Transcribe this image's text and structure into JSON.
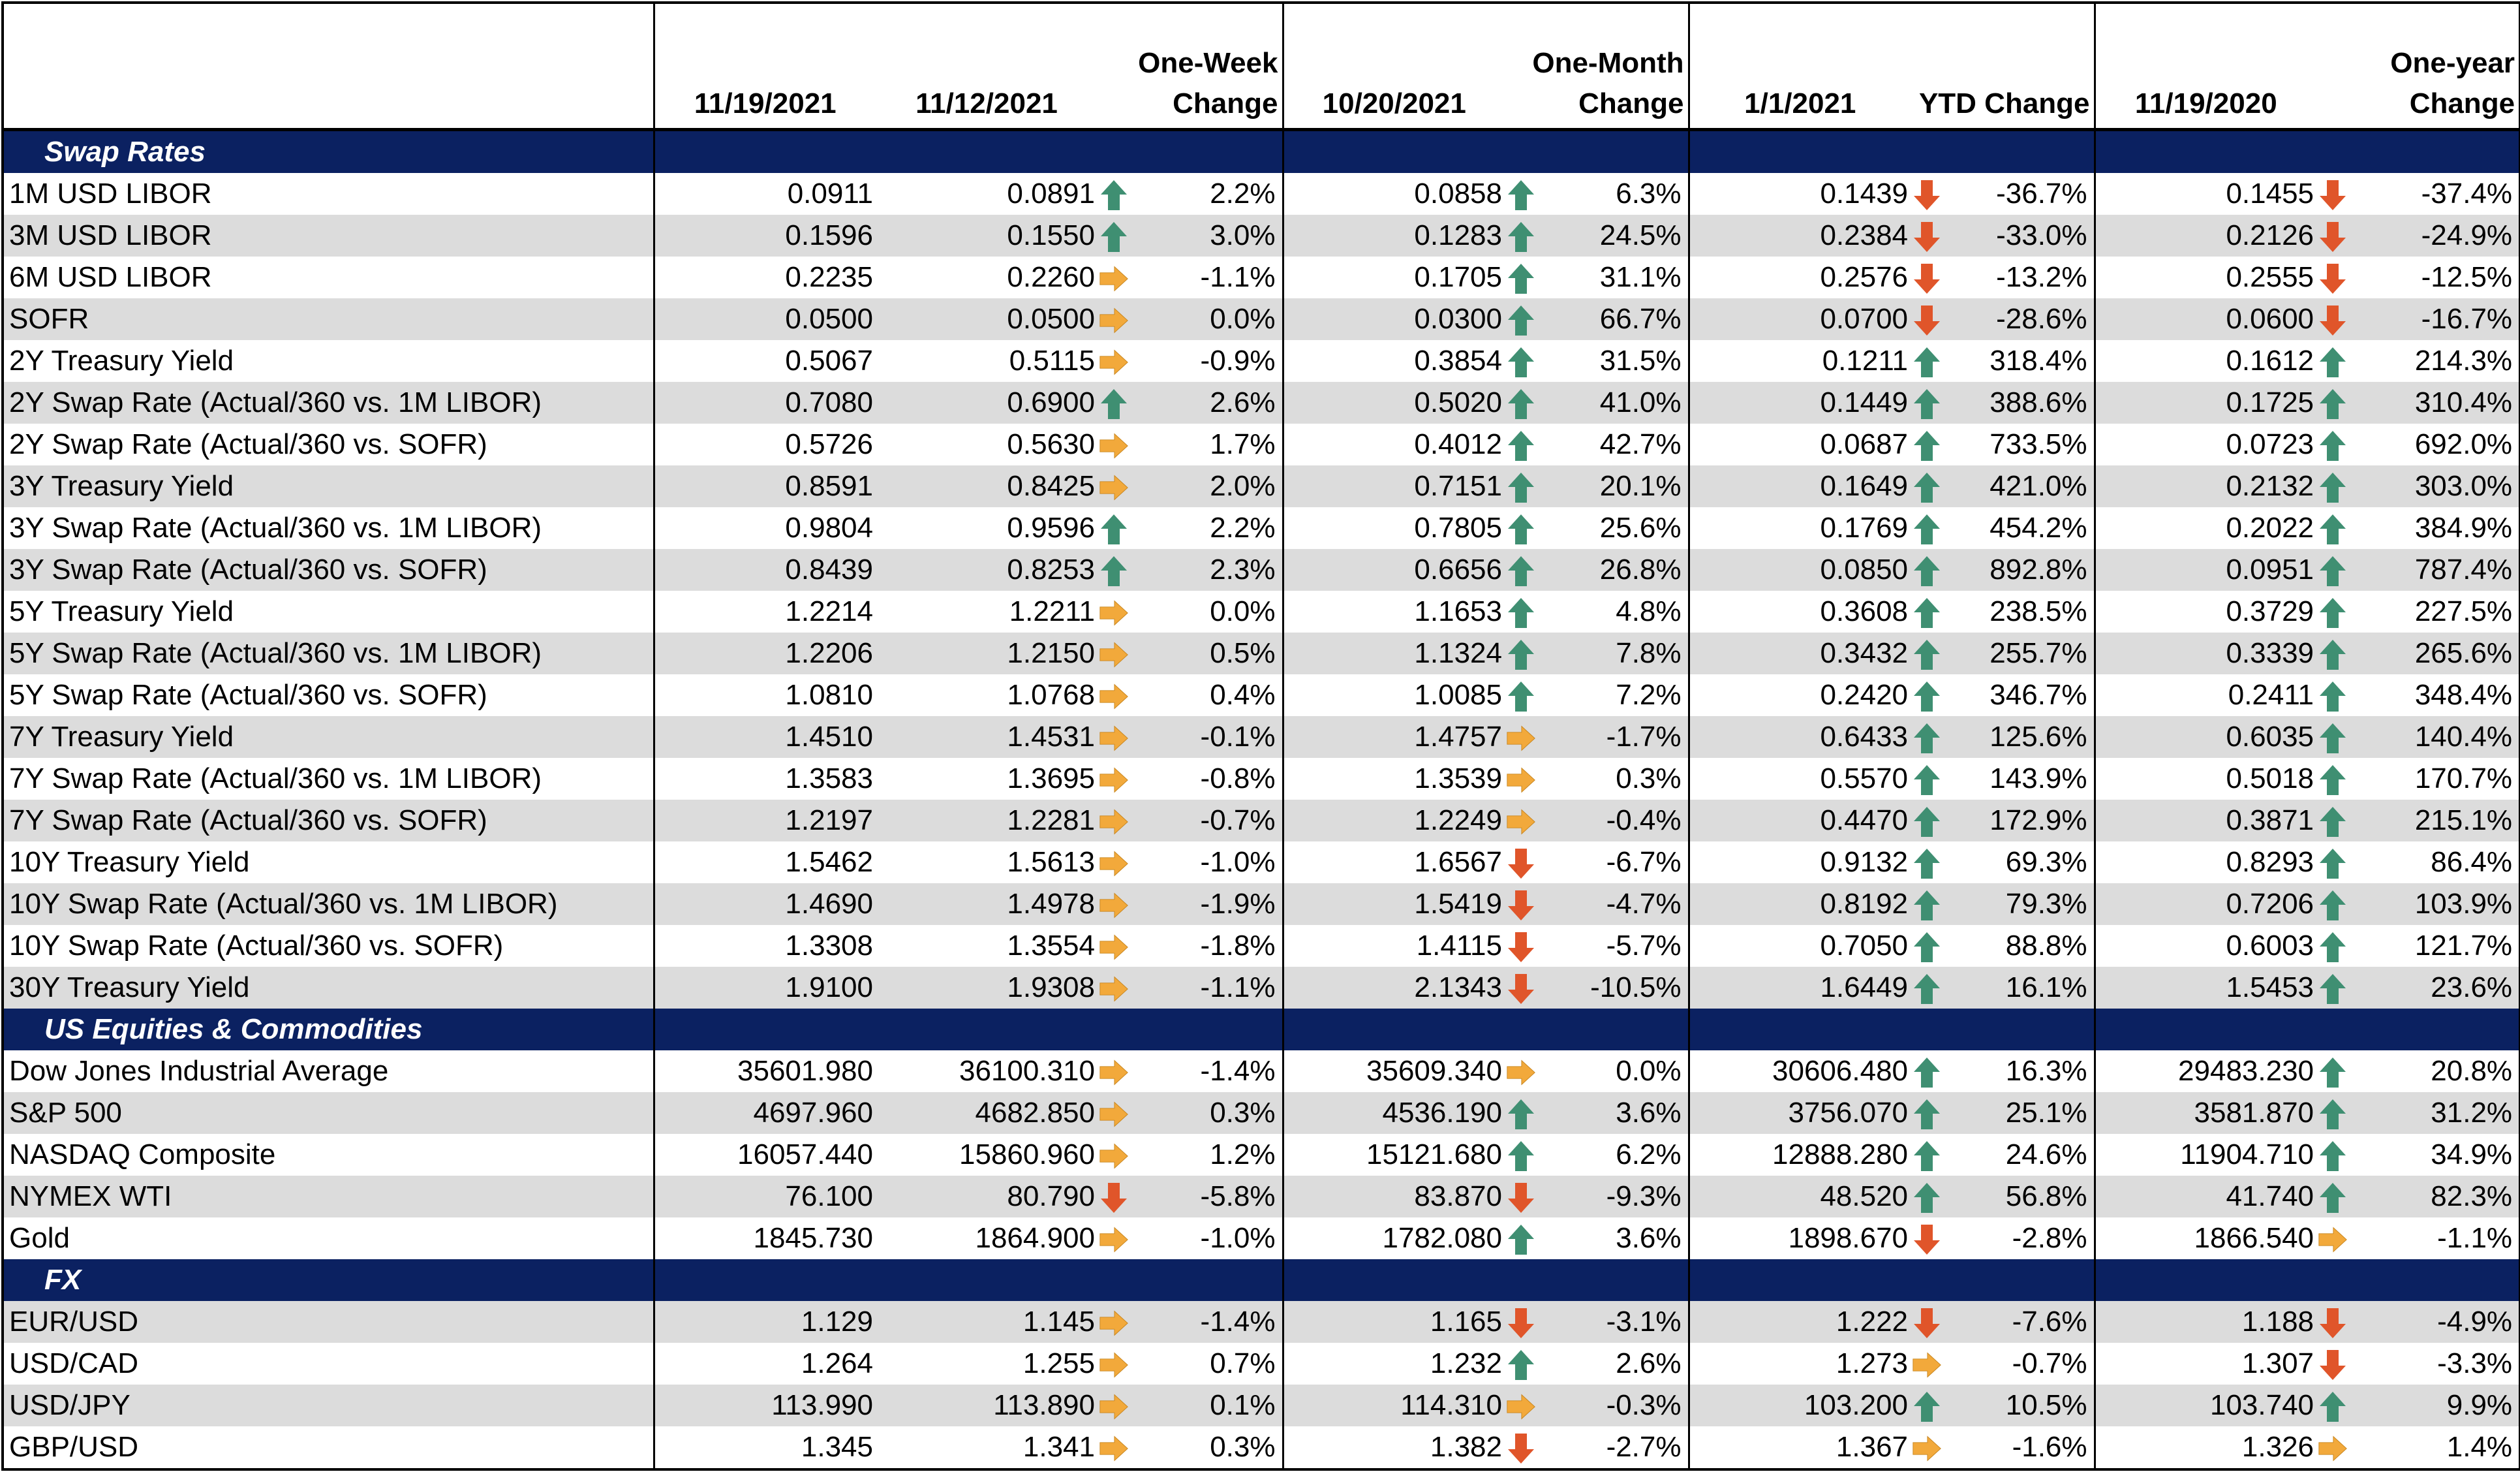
{
  "columns": {
    "c1": "11/19/2021",
    "c2": "11/12/2021",
    "c3": [
      "One-Week",
      "Change"
    ],
    "c4": "10/20/2021",
    "c5": [
      "One-Month",
      "Change"
    ],
    "c6": "1/1/2021",
    "c7": "YTD Change",
    "c8": "11/19/2020",
    "c9": [
      "One-year",
      "Change"
    ]
  },
  "colors": {
    "section_bg": "#0b2161",
    "band": "#dcdcdc",
    "up": "#3f8f72",
    "down": "#e0552a",
    "flat": "#f2a93b"
  },
  "sections": [
    {
      "title": "Swap Rates",
      "rows": [
        {
          "name": "1M USD LIBOR",
          "cur": "0.0911",
          "wk": "0.0891",
          "wk_dir": "up",
          "wk_chg": "2.2%",
          "mo": "0.0858",
          "mo_dir": "up",
          "mo_chg": "6.3%",
          "ytd": "0.1439",
          "ytd_dir": "down",
          "ytd_chg": "-36.7%",
          "yr": "0.1455",
          "yr_dir": "down",
          "yr_chg": "-37.4%"
        },
        {
          "name": "3M USD LIBOR",
          "cur": "0.1596",
          "wk": "0.1550",
          "wk_dir": "up",
          "wk_chg": "3.0%",
          "mo": "0.1283",
          "mo_dir": "up",
          "mo_chg": "24.5%",
          "ytd": "0.2384",
          "ytd_dir": "down",
          "ytd_chg": "-33.0%",
          "yr": "0.2126",
          "yr_dir": "down",
          "yr_chg": "-24.9%"
        },
        {
          "name": "6M USD LIBOR",
          "cur": "0.2235",
          "wk": "0.2260",
          "wk_dir": "flat",
          "wk_chg": "-1.1%",
          "mo": "0.1705",
          "mo_dir": "up",
          "mo_chg": "31.1%",
          "ytd": "0.2576",
          "ytd_dir": "down",
          "ytd_chg": "-13.2%",
          "yr": "0.2555",
          "yr_dir": "down",
          "yr_chg": "-12.5%"
        },
        {
          "name": "SOFR",
          "cur": "0.0500",
          "wk": "0.0500",
          "wk_dir": "flat",
          "wk_chg": "0.0%",
          "mo": "0.0300",
          "mo_dir": "up",
          "mo_chg": "66.7%",
          "ytd": "0.0700",
          "ytd_dir": "down",
          "ytd_chg": "-28.6%",
          "yr": "0.0600",
          "yr_dir": "down",
          "yr_chg": "-16.7%"
        },
        {
          "name": "2Y Treasury Yield",
          "cur": "0.5067",
          "wk": "0.5115",
          "wk_dir": "flat",
          "wk_chg": "-0.9%",
          "mo": "0.3854",
          "mo_dir": "up",
          "mo_chg": "31.5%",
          "ytd": "0.1211",
          "ytd_dir": "up",
          "ytd_chg": "318.4%",
          "yr": "0.1612",
          "yr_dir": "up",
          "yr_chg": "214.3%"
        },
        {
          "name": "2Y Swap Rate (Actual/360 vs. 1M LIBOR)",
          "cur": "0.7080",
          "wk": "0.6900",
          "wk_dir": "up",
          "wk_chg": "2.6%",
          "mo": "0.5020",
          "mo_dir": "up",
          "mo_chg": "41.0%",
          "ytd": "0.1449",
          "ytd_dir": "up",
          "ytd_chg": "388.6%",
          "yr": "0.1725",
          "yr_dir": "up",
          "yr_chg": "310.4%"
        },
        {
          "name": "2Y Swap Rate (Actual/360 vs. SOFR)",
          "cur": "0.5726",
          "wk": "0.5630",
          "wk_dir": "flat",
          "wk_chg": "1.7%",
          "mo": "0.4012",
          "mo_dir": "up",
          "mo_chg": "42.7%",
          "ytd": "0.0687",
          "ytd_dir": "up",
          "ytd_chg": "733.5%",
          "yr": "0.0723",
          "yr_dir": "up",
          "yr_chg": "692.0%"
        },
        {
          "name": "3Y Treasury Yield",
          "cur": "0.8591",
          "wk": "0.8425",
          "wk_dir": "flat",
          "wk_chg": "2.0%",
          "mo": "0.7151",
          "mo_dir": "up",
          "mo_chg": "20.1%",
          "ytd": "0.1649",
          "ytd_dir": "up",
          "ytd_chg": "421.0%",
          "yr": "0.2132",
          "yr_dir": "up",
          "yr_chg": "303.0%"
        },
        {
          "name": "3Y Swap Rate (Actual/360 vs. 1M LIBOR)",
          "cur": "0.9804",
          "wk": "0.9596",
          "wk_dir": "up",
          "wk_chg": "2.2%",
          "mo": "0.7805",
          "mo_dir": "up",
          "mo_chg": "25.6%",
          "ytd": "0.1769",
          "ytd_dir": "up",
          "ytd_chg": "454.2%",
          "yr": "0.2022",
          "yr_dir": "up",
          "yr_chg": "384.9%"
        },
        {
          "name": "3Y Swap Rate (Actual/360 vs. SOFR)",
          "cur": "0.8439",
          "wk": "0.8253",
          "wk_dir": "up",
          "wk_chg": "2.3%",
          "mo": "0.6656",
          "mo_dir": "up",
          "mo_chg": "26.8%",
          "ytd": "0.0850",
          "ytd_dir": "up",
          "ytd_chg": "892.8%",
          "yr": "0.0951",
          "yr_dir": "up",
          "yr_chg": "787.4%"
        },
        {
          "name": "5Y Treasury Yield",
          "cur": "1.2214",
          "wk": "1.2211",
          "wk_dir": "flat",
          "wk_chg": "0.0%",
          "mo": "1.1653",
          "mo_dir": "up",
          "mo_chg": "4.8%",
          "ytd": "0.3608",
          "ytd_dir": "up",
          "ytd_chg": "238.5%",
          "yr": "0.3729",
          "yr_dir": "up",
          "yr_chg": "227.5%"
        },
        {
          "name": "5Y Swap Rate (Actual/360 vs. 1M LIBOR)",
          "cur": "1.2206",
          "wk": "1.2150",
          "wk_dir": "flat",
          "wk_chg": "0.5%",
          "mo": "1.1324",
          "mo_dir": "up",
          "mo_chg": "7.8%",
          "ytd": "0.3432",
          "ytd_dir": "up",
          "ytd_chg": "255.7%",
          "yr": "0.3339",
          "yr_dir": "up",
          "yr_chg": "265.6%"
        },
        {
          "name": "5Y Swap Rate (Actual/360 vs. SOFR)",
          "cur": "1.0810",
          "wk": "1.0768",
          "wk_dir": "flat",
          "wk_chg": "0.4%",
          "mo": "1.0085",
          "mo_dir": "up",
          "mo_chg": "7.2%",
          "ytd": "0.2420",
          "ytd_dir": "up",
          "ytd_chg": "346.7%",
          "yr": "0.2411",
          "yr_dir": "up",
          "yr_chg": "348.4%"
        },
        {
          "name": "7Y Treasury Yield",
          "cur": "1.4510",
          "wk": "1.4531",
          "wk_dir": "flat",
          "wk_chg": "-0.1%",
          "mo": "1.4757",
          "mo_dir": "flat",
          "mo_chg": "-1.7%",
          "ytd": "0.6433",
          "ytd_dir": "up",
          "ytd_chg": "125.6%",
          "yr": "0.6035",
          "yr_dir": "up",
          "yr_chg": "140.4%"
        },
        {
          "name": "7Y Swap Rate (Actual/360 vs. 1M LIBOR)",
          "cur": "1.3583",
          "wk": "1.3695",
          "wk_dir": "flat",
          "wk_chg": "-0.8%",
          "mo": "1.3539",
          "mo_dir": "flat",
          "mo_chg": "0.3%",
          "ytd": "0.5570",
          "ytd_dir": "up",
          "ytd_chg": "143.9%",
          "yr": "0.5018",
          "yr_dir": "up",
          "yr_chg": "170.7%"
        },
        {
          "name": "7Y Swap Rate (Actual/360 vs. SOFR)",
          "cur": "1.2197",
          "wk": "1.2281",
          "wk_dir": "flat",
          "wk_chg": "-0.7%",
          "mo": "1.2249",
          "mo_dir": "flat",
          "mo_chg": "-0.4%",
          "ytd": "0.4470",
          "ytd_dir": "up",
          "ytd_chg": "172.9%",
          "yr": "0.3871",
          "yr_dir": "up",
          "yr_chg": "215.1%"
        },
        {
          "name": "10Y Treasury Yield",
          "cur": "1.5462",
          "wk": "1.5613",
          "wk_dir": "flat",
          "wk_chg": "-1.0%",
          "mo": "1.6567",
          "mo_dir": "down",
          "mo_chg": "-6.7%",
          "ytd": "0.9132",
          "ytd_dir": "up",
          "ytd_chg": "69.3%",
          "yr": "0.8293",
          "yr_dir": "up",
          "yr_chg": "86.4%"
        },
        {
          "name": "10Y Swap Rate (Actual/360 vs. 1M LIBOR)",
          "cur": "1.4690",
          "wk": "1.4978",
          "wk_dir": "flat",
          "wk_chg": "-1.9%",
          "mo": "1.5419",
          "mo_dir": "down",
          "mo_chg": "-4.7%",
          "ytd": "0.8192",
          "ytd_dir": "up",
          "ytd_chg": "79.3%",
          "yr": "0.7206",
          "yr_dir": "up",
          "yr_chg": "103.9%"
        },
        {
          "name": "10Y Swap Rate (Actual/360 vs. SOFR)",
          "cur": "1.3308",
          "wk": "1.3554",
          "wk_dir": "flat",
          "wk_chg": "-1.8%",
          "mo": "1.4115",
          "mo_dir": "down",
          "mo_chg": "-5.7%",
          "ytd": "0.7050",
          "ytd_dir": "up",
          "ytd_chg": "88.8%",
          "yr": "0.6003",
          "yr_dir": "up",
          "yr_chg": "121.7%"
        },
        {
          "name": "30Y Treasury Yield",
          "cur": "1.9100",
          "wk": "1.9308",
          "wk_dir": "flat",
          "wk_chg": "-1.1%",
          "mo": "2.1343",
          "mo_dir": "down",
          "mo_chg": "-10.5%",
          "ytd": "1.6449",
          "ytd_dir": "up",
          "ytd_chg": "16.1%",
          "yr": "1.5453",
          "yr_dir": "up",
          "yr_chg": "23.6%"
        }
      ]
    },
    {
      "title": "US Equities & Commodities",
      "rows": [
        {
          "name": "Dow Jones Industrial Average",
          "cur": "35601.980",
          "wk": "36100.310",
          "wk_dir": "flat",
          "wk_chg": "-1.4%",
          "mo": "35609.340",
          "mo_dir": "flat",
          "mo_chg": "0.0%",
          "ytd": "30606.480",
          "ytd_dir": "up",
          "ytd_chg": "16.3%",
          "yr": "29483.230",
          "yr_dir": "up",
          "yr_chg": "20.8%"
        },
        {
          "name": "S&P 500",
          "cur": "4697.960",
          "wk": "4682.850",
          "wk_dir": "flat",
          "wk_chg": "0.3%",
          "mo": "4536.190",
          "mo_dir": "up",
          "mo_chg": "3.6%",
          "ytd": "3756.070",
          "ytd_dir": "up",
          "ytd_chg": "25.1%",
          "yr": "3581.870",
          "yr_dir": "up",
          "yr_chg": "31.2%"
        },
        {
          "name": "NASDAQ Composite",
          "cur": "16057.440",
          "wk": "15860.960",
          "wk_dir": "flat",
          "wk_chg": "1.2%",
          "mo": "15121.680",
          "mo_dir": "up",
          "mo_chg": "6.2%",
          "ytd": "12888.280",
          "ytd_dir": "up",
          "ytd_chg": "24.6%",
          "yr": "11904.710",
          "yr_dir": "up",
          "yr_chg": "34.9%"
        },
        {
          "name": "NYMEX WTI",
          "cur": "76.100",
          "wk": "80.790",
          "wk_dir": "down",
          "wk_chg": "-5.8%",
          "mo": "83.870",
          "mo_dir": "down",
          "mo_chg": "-9.3%",
          "ytd": "48.520",
          "ytd_dir": "up",
          "ytd_chg": "56.8%",
          "yr": "41.740",
          "yr_dir": "up",
          "yr_chg": "82.3%"
        },
        {
          "name": "Gold",
          "cur": "1845.730",
          "wk": "1864.900",
          "wk_dir": "flat",
          "wk_chg": "-1.0%",
          "mo": "1782.080",
          "mo_dir": "up",
          "mo_chg": "3.6%",
          "ytd": "1898.670",
          "ytd_dir": "down",
          "ytd_chg": "-2.8%",
          "yr": "1866.540",
          "yr_dir": "flat",
          "yr_chg": "-1.1%"
        }
      ]
    },
    {
      "title": "FX",
      "rows": [
        {
          "name": "EUR/USD",
          "cur": "1.129",
          "wk": "1.145",
          "wk_dir": "flat",
          "wk_chg": "-1.4%",
          "mo": "1.165",
          "mo_dir": "down",
          "mo_chg": "-3.1%",
          "ytd": "1.222",
          "ytd_dir": "down",
          "ytd_chg": "-7.6%",
          "yr": "1.188",
          "yr_dir": "down",
          "yr_chg": "-4.9%"
        },
        {
          "name": "USD/CAD",
          "cur": "1.264",
          "wk": "1.255",
          "wk_dir": "flat",
          "wk_chg": "0.7%",
          "mo": "1.232",
          "mo_dir": "up",
          "mo_chg": "2.6%",
          "ytd": "1.273",
          "ytd_dir": "flat",
          "ytd_chg": "-0.7%",
          "yr": "1.307",
          "yr_dir": "down",
          "yr_chg": "-3.3%"
        },
        {
          "name": "USD/JPY",
          "cur": "113.990",
          "wk": "113.890",
          "wk_dir": "flat",
          "wk_chg": "0.1%",
          "mo": "114.310",
          "mo_dir": "flat",
          "mo_chg": "-0.3%",
          "ytd": "103.200",
          "ytd_dir": "up",
          "ytd_chg": "10.5%",
          "yr": "103.740",
          "yr_dir": "up",
          "yr_chg": "9.9%"
        },
        {
          "name": "GBP/USD",
          "cur": "1.345",
          "wk": "1.341",
          "wk_dir": "flat",
          "wk_chg": "0.3%",
          "mo": "1.382",
          "mo_dir": "down",
          "mo_chg": "-2.7%",
          "ytd": "1.367",
          "ytd_dir": "flat",
          "ytd_chg": "-1.6%",
          "yr": "1.326",
          "yr_dir": "flat",
          "yr_chg": "1.4%"
        }
      ]
    }
  ]
}
